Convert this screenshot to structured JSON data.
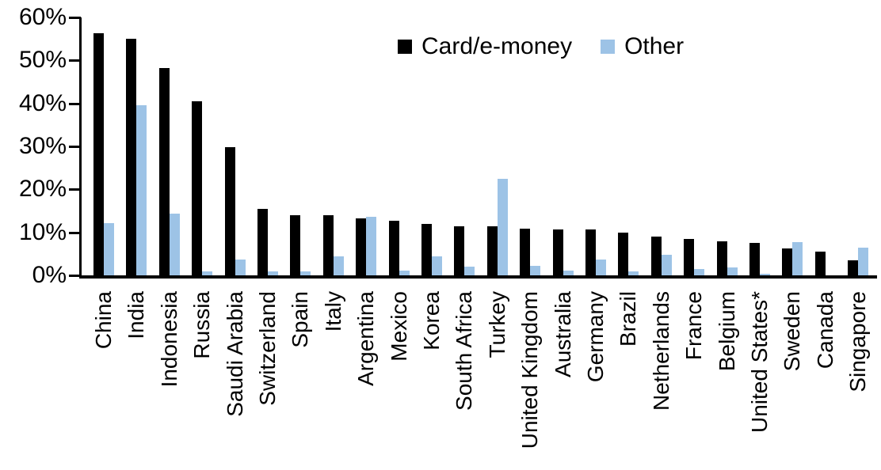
{
  "chart_data": {
    "type": "bar",
    "title": "",
    "xlabel": "",
    "ylabel": "",
    "ylim": [
      0,
      60
    ],
    "ytick_labels": [
      "0%",
      "10%",
      "20%",
      "30%",
      "40%",
      "50%",
      "60%"
    ],
    "grid": false,
    "legend_position": "top-center",
    "categories": [
      "China",
      "India",
      "Indonesia",
      "Russia",
      "Saudi Arabia",
      "Switzerland",
      "Spain",
      "Italy",
      "Argentina",
      "Mexico",
      "Korea",
      "South Africa",
      "Turkey",
      "United Kingdom",
      "Australia",
      "Germany",
      "Brazil",
      "Netherlands",
      "France",
      "Belgium",
      "United States*",
      "Sweden",
      "Canada",
      "Singapore"
    ],
    "series": [
      {
        "name": "Card/e-money",
        "color": "#000000",
        "values": [
          56.4,
          55.1,
          48.2,
          40.4,
          29.8,
          15.5,
          14.0,
          14.0,
          13.2,
          12.7,
          12.0,
          11.5,
          11.4,
          10.9,
          10.7,
          10.6,
          9.9,
          9.0,
          8.4,
          7.9,
          7.5,
          6.2,
          5.5,
          3.5
        ]
      },
      {
        "name": "Other",
        "color": "#9dc3e6",
        "values": [
          12.2,
          39.5,
          14.4,
          1.0,
          3.7,
          0.9,
          1.0,
          4.4,
          13.7,
          1.1,
          4.4,
          2.1,
          22.5,
          2.2,
          1.1,
          3.7,
          1.0,
          4.7,
          1.4,
          1.9,
          0.3,
          7.8,
          0.0,
          6.4
        ]
      }
    ]
  }
}
